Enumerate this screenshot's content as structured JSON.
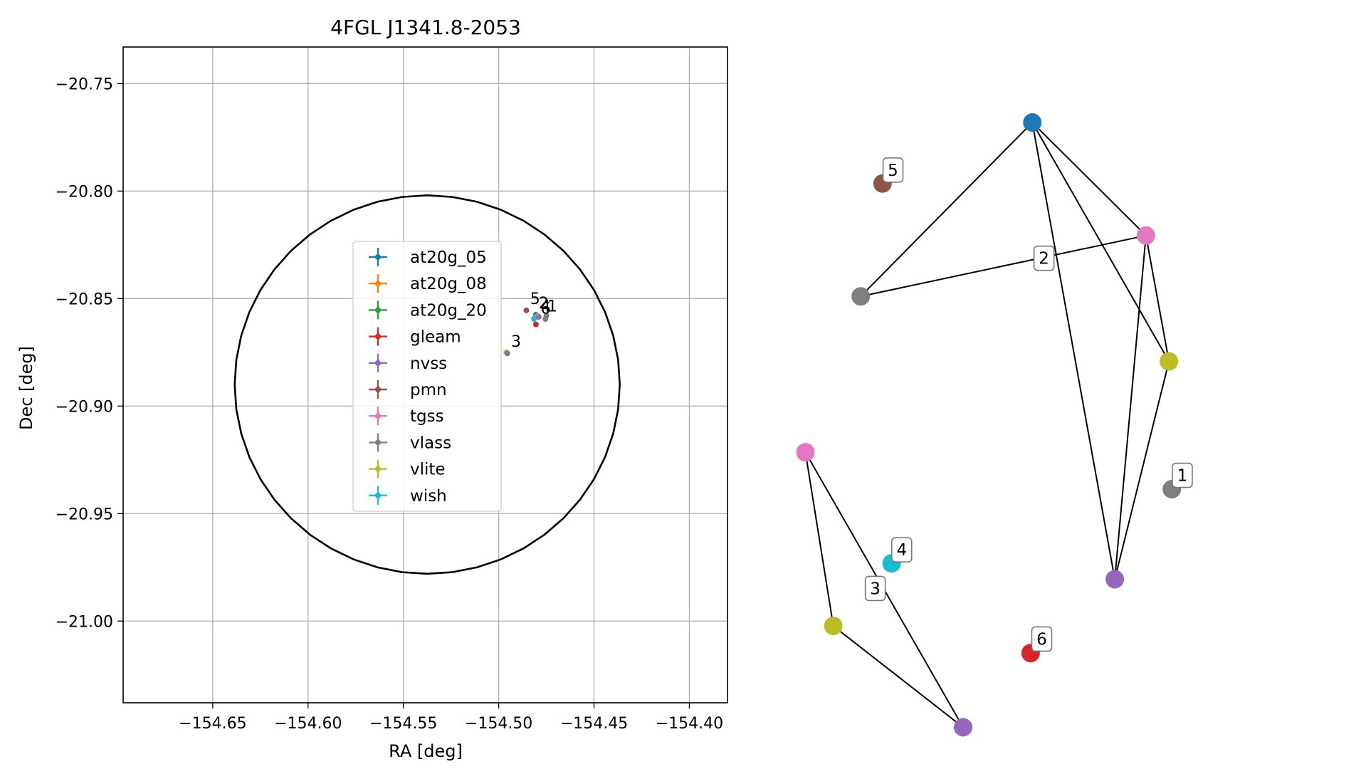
{
  "colors": {
    "at20g_05": "#1f77b4",
    "at20g_08": "#ff7f0e",
    "at20g_20": "#2ca02c",
    "gleam": "#d62728",
    "nvss": "#9467bd",
    "pmn": "#8c564b",
    "tgss": "#e377c2",
    "vlass": "#7f7f7f",
    "vlite": "#bcbd22",
    "wish": "#17becf"
  },
  "chart_data": [
    {
      "type": "scatter",
      "title": "4FGL J1341.8-2053",
      "xlabel": "RA [deg]",
      "ylabel": "Dec [deg]",
      "xlim": [
        -154.697,
        -154.38
      ],
      "ylim": [
        -21.038,
        -20.733
      ],
      "x_reversed": false,
      "xticks": [
        -154.65,
        -154.6,
        -154.55,
        -154.5,
        -154.45,
        -154.4
      ],
      "xtick_labels": [
        "−154.65",
        "−154.60",
        "−154.55",
        "−154.50",
        "−154.45",
        "−154.40"
      ],
      "yticks": [
        -20.75,
        -20.8,
        -20.85,
        -20.9,
        -20.95,
        -21.0
      ],
      "ytick_labels": [
        "−20.75",
        "−20.80",
        "−20.85",
        "−20.90",
        "−20.95",
        "−21.00"
      ],
      "grid": true,
      "legend_position": "center-left",
      "legend": [
        "at20g_05",
        "at20g_08",
        "at20g_20",
        "gleam",
        "nvss",
        "pmn",
        "tgss",
        "vlass",
        "vlite",
        "wish"
      ],
      "ellipse": {
        "center": [
          -154.5375,
          -20.89
        ],
        "ra_semi_axis": 0.101,
        "dec_semi_axis": 0.088
      },
      "points": [
        {
          "series": "pmn",
          "x": -154.4855,
          "y": -20.8555
        },
        {
          "series": "at20g_05",
          "x": -154.4805,
          "y": -20.8575
        },
        {
          "series": "vlite",
          "x": -154.4795,
          "y": -20.858
        },
        {
          "series": "tgss",
          "x": -154.481,
          "y": -20.859
        },
        {
          "series": "wish",
          "x": -154.4815,
          "y": -20.8595
        },
        {
          "series": "nvss",
          "x": -154.479,
          "y": -20.8585
        },
        {
          "series": "vlass",
          "x": -154.475,
          "y": -20.858
        },
        {
          "series": "vlass",
          "x": -154.4755,
          "y": -20.8595
        },
        {
          "series": "gleam",
          "x": -154.4805,
          "y": -20.862
        },
        {
          "series": "vlite",
          "x": -154.496,
          "y": -20.875
        },
        {
          "series": "vlass",
          "x": -154.4955,
          "y": -20.8755
        }
      ],
      "group_labels": [
        {
          "text": "5",
          "x": -154.4835,
          "y": -20.8525
        },
        {
          "text": "2",
          "x": -154.479,
          "y": -20.8545
        },
        {
          "text": "4",
          "x": -154.478,
          "y": -20.856
        },
        {
          "text": "1",
          "x": -154.4745,
          "y": -20.856
        },
        {
          "text": "6",
          "x": -154.478,
          "y": -20.857
        },
        {
          "text": "3",
          "x": -154.4935,
          "y": -20.8725
        }
      ]
    },
    {
      "type": "network",
      "nodes": [
        {
          "id": "n_blue",
          "series": "at20g_05",
          "x": 0.4627,
          "y": 0.1593
        },
        {
          "id": "n_brown",
          "series": "pmn",
          "x": 0.1643,
          "y": 0.2387
        },
        {
          "id": "n_pink_top",
          "series": "tgss",
          "x": 0.6892,
          "y": 0.3063
        },
        {
          "id": "n_gray_left",
          "series": "vlass",
          "x": 0.1208,
          "y": 0.3854
        },
        {
          "id": "n_olive_right",
          "series": "vlite",
          "x": 0.735,
          "y": 0.4699
        },
        {
          "id": "n_pink_left",
          "series": "tgss",
          "x": 0.0106,
          "y": 0.5881
        },
        {
          "id": "n_gray_right",
          "series": "vlass",
          "x": 0.7407,
          "y": 0.6361
        },
        {
          "id": "n_cyan",
          "series": "wish",
          "x": 0.1824,
          "y": 0.7326
        },
        {
          "id": "n_purple_right",
          "series": "nvss",
          "x": 0.6271,
          "y": 0.7532
        },
        {
          "id": "n_olive_left",
          "series": "vlite",
          "x": 0.0662,
          "y": 0.814
        },
        {
          "id": "n_red",
          "series": "gleam",
          "x": 0.4594,
          "y": 0.8493
        },
        {
          "id": "n_purple_bottom",
          "series": "nvss",
          "x": 0.3247,
          "y": 0.9457
        }
      ],
      "edges": [
        [
          "n_blue",
          "n_gray_left"
        ],
        [
          "n_blue",
          "n_pink_top"
        ],
        [
          "n_blue",
          "n_olive_right"
        ],
        [
          "n_blue",
          "n_purple_right"
        ],
        [
          "n_gray_left",
          "n_pink_top"
        ],
        [
          "n_pink_top",
          "n_olive_right"
        ],
        [
          "n_pink_top",
          "n_purple_right"
        ],
        [
          "n_olive_right",
          "n_purple_right"
        ],
        [
          "n_pink_left",
          "n_olive_left"
        ],
        [
          "n_pink_left",
          "n_purple_bottom"
        ],
        [
          "n_olive_left",
          "n_purple_bottom"
        ]
      ],
      "group_labels": [
        {
          "text": "1",
          "x": 0.746,
          "y": 0.6181
        },
        {
          "text": "2",
          "x": 0.4704,
          "y": 0.3358
        },
        {
          "text": "3",
          "x": 0.1342,
          "y": 0.7652
        },
        {
          "text": "4",
          "x": 0.1869,
          "y": 0.715
        },
        {
          "text": "5",
          "x": 0.1695,
          "y": 0.2211
        },
        {
          "text": "6",
          "x": 0.4659,
          "y": 0.831
        }
      ]
    }
  ]
}
